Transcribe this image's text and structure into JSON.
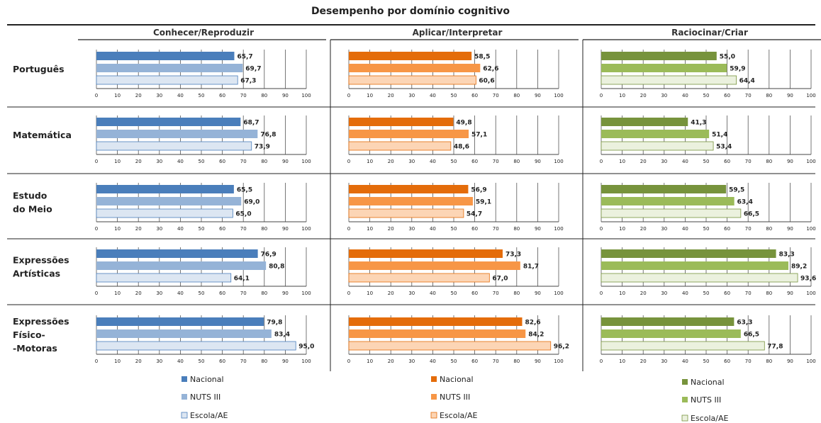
{
  "title": "Desempenho por domínio cognitivo",
  "chart_data": {
    "type": "bar",
    "orientation": "horizontal",
    "title": "Desempenho por domínio cognitivo",
    "columns": [
      "Conhecer/Reproduzir",
      "Aplicar/Interpretar",
      "Raciocinar/Criar"
    ],
    "rows": [
      [
        "Português"
      ],
      [
        "Matemática"
      ],
      [
        "Estudo",
        "do Meio"
      ],
      [
        "Expressões",
        "Artísticas"
      ],
      [
        "Expressões",
        "Físico-",
        "-Motoras"
      ]
    ],
    "series": [
      "Nacional",
      "NUTS III",
      "Escola/AE"
    ],
    "values": [
      [
        [
          "65,7",
          "69,7",
          "67,3"
        ],
        [
          "58,5",
          "62,6",
          "60,6"
        ],
        [
          "55,0",
          "59,9",
          "64,4"
        ]
      ],
      [
        [
          "68,7",
          "76,8",
          "73,9"
        ],
        [
          "49,8",
          "57,1",
          "48,6"
        ],
        [
          "41,3",
          "51,4",
          "53,4"
        ]
      ],
      [
        [
          "65,5",
          "69,0",
          "65,0"
        ],
        [
          "56,9",
          "59,1",
          "54,7"
        ],
        [
          "59,5",
          "63,4",
          "66,5"
        ]
      ],
      [
        [
          "76,9",
          "80,8",
          "64,1"
        ],
        [
          "73,3",
          "81,7",
          "67,0"
        ],
        [
          "83,3",
          "89,2",
          "93,6"
        ]
      ],
      [
        [
          "79,8",
          "83,4",
          "95,0"
        ],
        [
          "82,6",
          "84,2",
          "96,2"
        ],
        [
          "63,3",
          "66,5",
          "77,8"
        ]
      ]
    ],
    "xlim": [
      0,
      100
    ],
    "xticks": [
      "0",
      "10",
      "20",
      "30",
      "40",
      "50",
      "60",
      "70",
      "80",
      "90",
      "100"
    ],
    "grid": true,
    "legend_position": "bottom",
    "colors": [
      [
        "#4a7ebb",
        "#95b3d7",
        "#dce6f2"
      ],
      [
        "#e46c0a",
        "#f79646",
        "#fcd5b5"
      ],
      [
        "#77933c",
        "#9bbb59",
        "#ebf1de"
      ]
    ],
    "bar_outlines": [
      "#4a7ebb",
      "#e46c0a",
      "#77933c"
    ]
  }
}
